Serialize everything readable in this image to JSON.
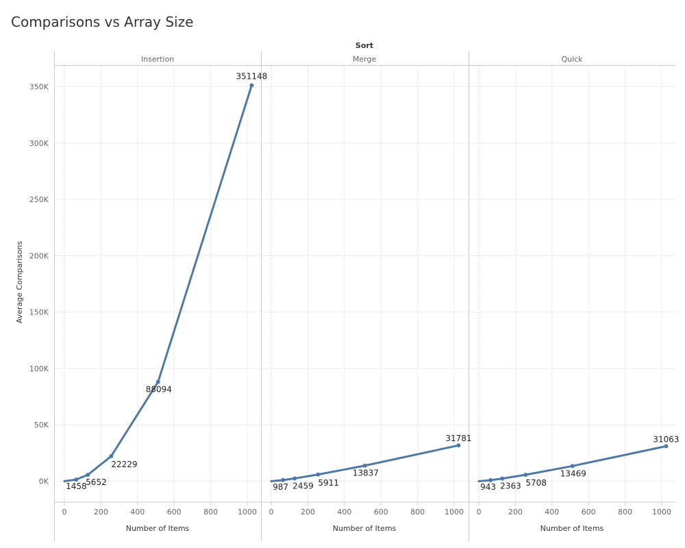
{
  "chart_data": {
    "type": "line",
    "title": "Comparisons vs Array Size",
    "column_header": "Sort",
    "ylabel": "Average Comparisons",
    "xlabel": "Number of Items",
    "ylim": [
      -20000,
      370000
    ],
    "xlim": [
      -60,
      1080
    ],
    "y_ticks": [
      0,
      50000,
      100000,
      150000,
      200000,
      250000,
      300000,
      350000
    ],
    "y_tick_labels": [
      "0K",
      "50K",
      "100K",
      "150K",
      "200K",
      "250K",
      "300K",
      "350K"
    ],
    "x_ticks": [
      0,
      200,
      400,
      600,
      800,
      1000
    ],
    "x_tick_labels": [
      "0",
      "200",
      "400",
      "600",
      "800",
      "1000"
    ],
    "grid": true,
    "line_color": "#4e79a7",
    "panels": [
      {
        "name": "Insertion",
        "points": [
          {
            "x": 0,
            "y": 0,
            "label": ""
          },
          {
            "x": 64,
            "y": 1458,
            "label": "1458"
          },
          {
            "x": 128,
            "y": 5652,
            "label": "5652"
          },
          {
            "x": 256,
            "y": 22229,
            "label": "22229"
          },
          {
            "x": 512,
            "y": 88094,
            "label": "88094"
          },
          {
            "x": 1024,
            "y": 351148,
            "label": "351148"
          }
        ]
      },
      {
        "name": "Merge",
        "points": [
          {
            "x": 0,
            "y": 0,
            "label": ""
          },
          {
            "x": 64,
            "y": 987,
            "label": "987"
          },
          {
            "x": 128,
            "y": 2459,
            "label": "2459"
          },
          {
            "x": 256,
            "y": 5911,
            "label": "5911"
          },
          {
            "x": 512,
            "y": 13837,
            "label": "13837"
          },
          {
            "x": 1024,
            "y": 31781,
            "label": "31781"
          }
        ]
      },
      {
        "name": "Quick",
        "points": [
          {
            "x": 0,
            "y": 0,
            "label": ""
          },
          {
            "x": 64,
            "y": 943,
            "label": "943"
          },
          {
            "x": 128,
            "y": 2363,
            "label": "2363"
          },
          {
            "x": 256,
            "y": 5708,
            "label": "5708"
          },
          {
            "x": 512,
            "y": 13469,
            "label": "13469"
          },
          {
            "x": 1024,
            "y": 31063,
            "label": "31063"
          }
        ]
      }
    ]
  }
}
